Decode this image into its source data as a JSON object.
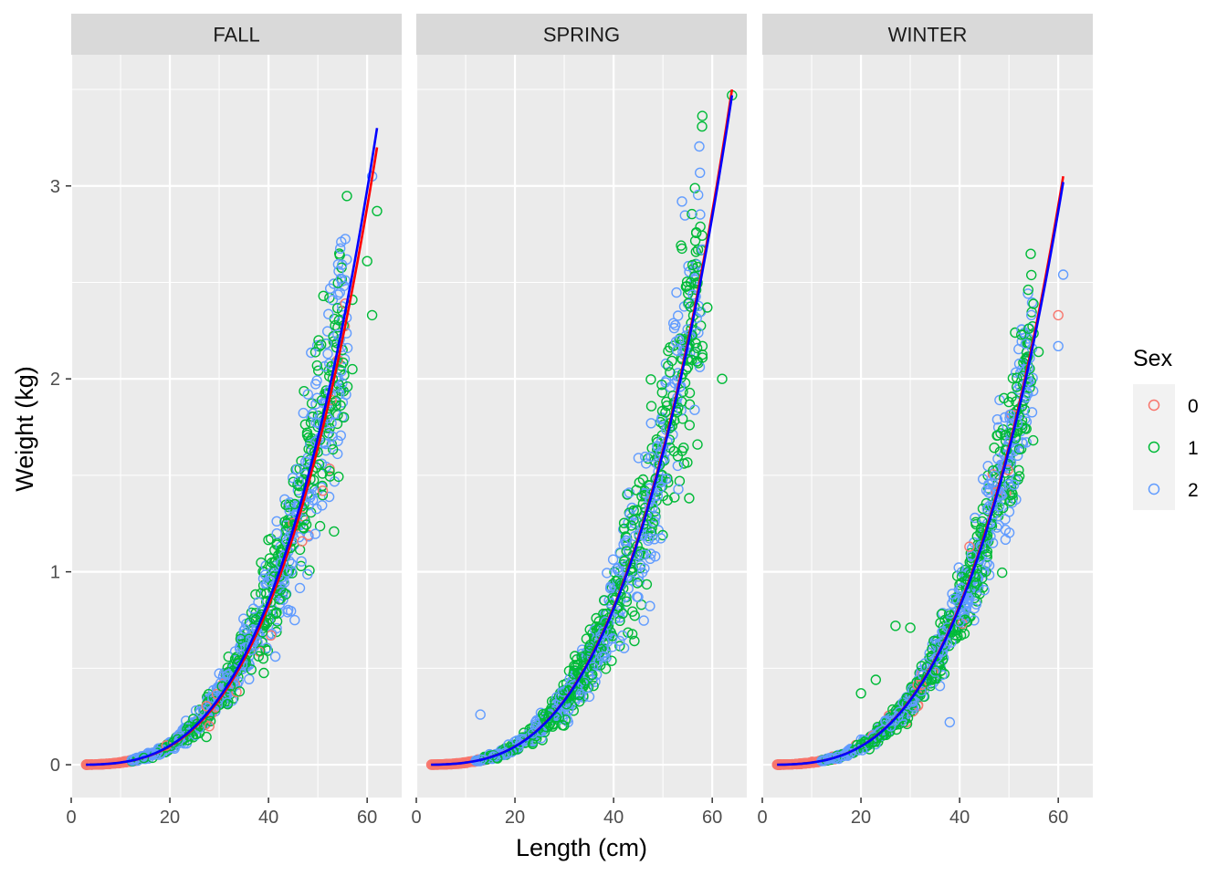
{
  "colors": {
    "panel_bg": "#EBEBEB",
    "strip_bg": "#D9D9D9",
    "grid": "#FFFFFF",
    "tick_text": "#4D4D4D",
    "sex_0": "#F8766D",
    "sex_1": "#00BA38",
    "sex_2": "#619CFF",
    "fit_red": "#FF0000",
    "fit_blue": "#0000FF"
  },
  "chart_data": {
    "type": "scatter",
    "xlabel": "Length (cm)",
    "ylabel": "Weight (kg)",
    "xlim": [
      0,
      67
    ],
    "ylim": [
      -0.17,
      3.68
    ],
    "x_ticks": [
      0,
      20,
      40,
      60
    ],
    "y_ticks": [
      0,
      1,
      2,
      3
    ],
    "grid": true,
    "legend": {
      "title": "Sex",
      "position": "right",
      "entries": [
        {
          "label": "0",
          "color": "#F8766D"
        },
        {
          "label": "1",
          "color": "#00BA38"
        },
        {
          "label": "2",
          "color": "#619CFF"
        }
      ]
    },
    "panels": [
      {
        "title": "FALL",
        "fit_red": {
          "x_max": 62,
          "y_max": 3.2
        },
        "fit_blue": {
          "x_max": 62,
          "y_max": 3.3
        },
        "scatter_spread": 0.14,
        "highlight_points": [
          {
            "x": 48,
            "y": 1.92,
            "sex": "2"
          },
          {
            "x": 49,
            "y": 1.82,
            "sex": "2"
          },
          {
            "x": 50,
            "y": 1.62,
            "sex": "1"
          },
          {
            "x": 51,
            "y": 1.42,
            "sex": "0"
          },
          {
            "x": 52,
            "y": 2.13,
            "sex": "2"
          },
          {
            "x": 53,
            "y": 2.0,
            "sex": "1"
          },
          {
            "x": 53,
            "y": 1.7,
            "sex": "2"
          },
          {
            "x": 54,
            "y": 2.23,
            "sex": "2"
          },
          {
            "x": 55,
            "y": 2.15,
            "sex": "1"
          },
          {
            "x": 56,
            "y": 2.16,
            "sex": "2"
          },
          {
            "x": 56,
            "y": 1.96,
            "sex": "1"
          },
          {
            "x": 57,
            "y": 2.05,
            "sex": "1"
          },
          {
            "x": 57,
            "y": 2.41,
            "sex": "1"
          },
          {
            "x": 60,
            "y": 2.61,
            "sex": "1"
          },
          {
            "x": 61,
            "y": 2.33,
            "sex": "1"
          },
          {
            "x": 61,
            "y": 3.05,
            "sex": "2"
          },
          {
            "x": 62,
            "y": 2.87,
            "sex": "1"
          },
          {
            "x": 28,
            "y": 0.2,
            "sex": "0"
          }
        ]
      },
      {
        "title": "SPRING",
        "fit_red": {
          "x_max": 64,
          "y_max": 3.5
        },
        "fit_blue": {
          "x_max": 64,
          "y_max": 3.47
        },
        "scatter_spread": 0.15,
        "highlight_points": [
          {
            "x": 13,
            "y": 0.26,
            "sex": "2"
          },
          {
            "x": 54,
            "y": 2.14,
            "sex": "2"
          },
          {
            "x": 55,
            "y": 2.1,
            "sex": "1"
          },
          {
            "x": 56,
            "y": 2.59,
            "sex": "1"
          },
          {
            "x": 57,
            "y": 2.5,
            "sex": "1"
          },
          {
            "x": 57,
            "y": 2.58,
            "sex": "1"
          },
          {
            "x": 58,
            "y": 2.67,
            "sex": "2"
          },
          {
            "x": 59,
            "y": 2.37,
            "sex": "1"
          },
          {
            "x": 62,
            "y": 2.0,
            "sex": "1"
          },
          {
            "x": 64,
            "y": 3.47,
            "sex": "1"
          },
          {
            "x": 58,
            "y": 2.17,
            "sex": "1"
          },
          {
            "x": 58,
            "y": 2.11,
            "sex": "1"
          },
          {
            "x": 53,
            "y": 1.6,
            "sex": "1"
          },
          {
            "x": 57,
            "y": 1.66,
            "sex": "1"
          }
        ]
      },
      {
        "title": "WINTER",
        "fit_red": {
          "x_max": 61,
          "y_max": 3.05
        },
        "fit_blue": {
          "x_max": 61,
          "y_max": 3.02
        },
        "scatter_spread": 0.11,
        "highlight_points": [
          {
            "x": 20,
            "y": 0.37,
            "sex": "1"
          },
          {
            "x": 23,
            "y": 0.44,
            "sex": "1"
          },
          {
            "x": 27,
            "y": 0.72,
            "sex": "1"
          },
          {
            "x": 30,
            "y": 0.71,
            "sex": "1"
          },
          {
            "x": 38,
            "y": 0.22,
            "sex": "2"
          },
          {
            "x": 42,
            "y": 1.13,
            "sex": "0"
          },
          {
            "x": 49,
            "y": 1.9,
            "sex": "1"
          },
          {
            "x": 50,
            "y": 1.88,
            "sex": "1"
          },
          {
            "x": 51,
            "y": 1.72,
            "sex": "1"
          },
          {
            "x": 54,
            "y": 2.26,
            "sex": "1"
          },
          {
            "x": 54,
            "y": 1.99,
            "sex": "2"
          },
          {
            "x": 56,
            "y": 2.14,
            "sex": "1"
          },
          {
            "x": 60,
            "y": 2.33,
            "sex": "0"
          },
          {
            "x": 60,
            "y": 2.17,
            "sex": "2"
          },
          {
            "x": 61,
            "y": 2.54,
            "sex": "2"
          },
          {
            "x": 51,
            "y": 1.45,
            "sex": "2"
          },
          {
            "x": 40,
            "y": 0.74,
            "sex": "2"
          }
        ]
      }
    ]
  }
}
